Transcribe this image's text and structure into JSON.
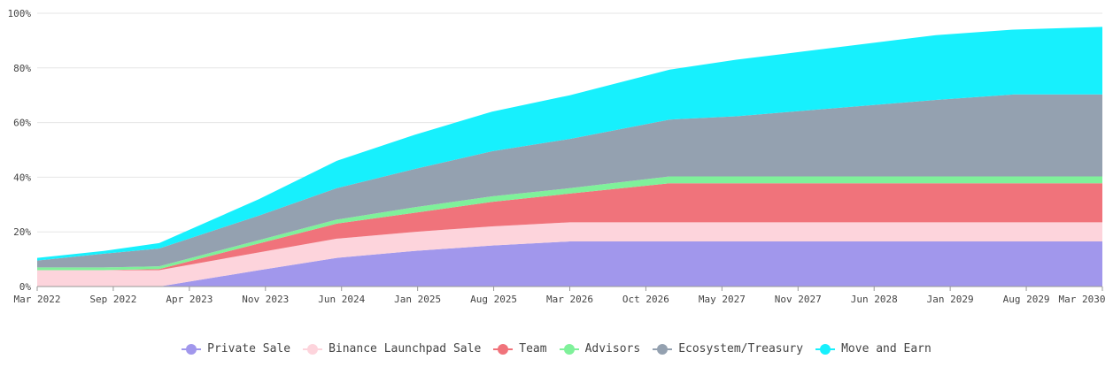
{
  "chart_data": {
    "type": "area",
    "stacked": true,
    "x_ticks": [
      "Mar 2022",
      "Sep 2022",
      "Apr 2023",
      "Nov 2023",
      "Jun 2024",
      "Jan 2025",
      "Aug 2025",
      "Mar 2026",
      "Oct 2026",
      "May 2027",
      "Nov 2027",
      "Jun 2028",
      "Jan 2029",
      "Aug 2029",
      "Mar 2030"
    ],
    "y_ticks": [
      "0%",
      "20%",
      "40%",
      "60%",
      "80%",
      "100%"
    ],
    "ylim": [
      0,
      100
    ],
    "grid": true,
    "legend_position": "bottom",
    "x": [
      "2022-03",
      "2022-09",
      "2023-02",
      "2023-11",
      "2024-06",
      "2025-01",
      "2025-08",
      "2026-03",
      "2026-12",
      "2027-06",
      "2027-12",
      "2028-06",
      "2028-12",
      "2029-07",
      "2030-03"
    ],
    "series": [
      {
        "name": "Private Sale",
        "color": "#a197ec",
        "values": [
          0,
          0,
          0,
          6,
          10.5,
          13,
          15,
          16.5,
          16.5,
          16.5,
          16.5,
          16.5,
          16.5,
          16.5,
          16.5
        ]
      },
      {
        "name": "Binance Launchpad Sale",
        "color": "#fdd4dc",
        "values": [
          6,
          6,
          6,
          6.5,
          7,
          7,
          7,
          7,
          7,
          7,
          7,
          7,
          7,
          7,
          7
        ]
      },
      {
        "name": "Team",
        "color": "#f0737b",
        "values": [
          0,
          0,
          0.4,
          3.3,
          5.5,
          7,
          9,
          10.5,
          14.3,
          14.3,
          14.3,
          14.3,
          14.3,
          14.3,
          14.3
        ]
      },
      {
        "name": "Advisors",
        "color": "#7ff19a",
        "values": [
          1,
          1,
          1,
          1.2,
          1.5,
          2,
          2,
          2,
          2.5,
          2.5,
          2.5,
          2.5,
          2.5,
          2.5,
          2.5
        ]
      },
      {
        "name": "Ecosystem/Treasury",
        "color": "#94a1b0",
        "values": [
          2.5,
          5,
          6.5,
          9,
          11.5,
          14,
          16.5,
          18,
          20.8,
          22,
          24,
          26,
          28,
          30,
          30
        ]
      },
      {
        "name": "Move and Earn",
        "color": "#17f0fd",
        "values": [
          1,
          1,
          2,
          6,
          10,
          12.5,
          14.5,
          16,
          18.3,
          20.7,
          21.7,
          22.7,
          23.7,
          23.7,
          24.7
        ]
      }
    ]
  }
}
